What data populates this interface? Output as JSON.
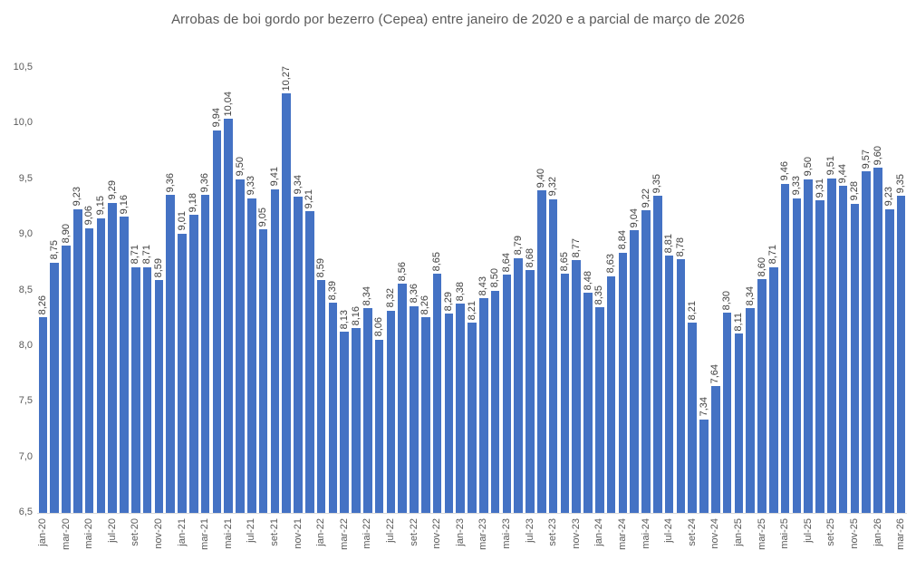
{
  "title": "Arrobas de boi gordo por bezerro (Cepea) entre janeiro de 2020 e a parcial de março de 2026",
  "chart_data": {
    "type": "bar",
    "title": "Arrobas de boi gordo por bezerro (Cepea) entre janeiro de 2020 e a parcial de março de 2026",
    "categories": [
      "jan-20",
      "fev-20",
      "mar-20",
      "abr-20",
      "mai-20",
      "jun-20",
      "jul-20",
      "ago-20",
      "set-20",
      "out-20",
      "nov-20",
      "dez-20",
      "jan-21",
      "fev-21",
      "mar-21",
      "abr-21",
      "mai-21",
      "jun-21",
      "jul-21",
      "ago-21",
      "set-21",
      "out-21",
      "nov-21",
      "dez-21",
      "jan-22",
      "fev-22",
      "mar-22",
      "abr-22",
      "mai-22",
      "jun-22",
      "jul-22",
      "ago-22",
      "set-22",
      "out-22",
      "nov-22",
      "dez-22",
      "jan-23",
      "fev-23",
      "mar-23",
      "abr-23",
      "mai-23",
      "jun-23",
      "jul-23",
      "ago-23",
      "set-23",
      "out-23",
      "nov-23",
      "dez-23",
      "jan-24",
      "fev-24",
      "mar-24",
      "abr-24",
      "mai-24",
      "jun-24",
      "jul-24",
      "ago-24",
      "set-24",
      "out-24",
      "nov-24",
      "dez-24",
      "jan-25",
      "fev-25",
      "mar-25",
      "abr-25",
      "mai-25",
      "jun-25",
      "jul-25",
      "ago-25",
      "set-25",
      "out-25",
      "nov-25",
      "dez-25",
      "jan-26",
      "fev-26",
      "mar-26"
    ],
    "values": [
      8.26,
      8.75,
      8.9,
      9.23,
      9.06,
      9.15,
      9.29,
      9.16,
      8.71,
      8.71,
      8.59,
      9.36,
      9.01,
      9.18,
      9.36,
      9.94,
      10.04,
      9.5,
      9.33,
      9.05,
      9.41,
      10.27,
      9.34,
      9.21,
      8.59,
      8.39,
      8.13,
      8.16,
      8.34,
      8.06,
      8.32,
      8.56,
      8.36,
      8.26,
      8.65,
      8.29,
      8.38,
      8.21,
      8.43,
      8.5,
      8.64,
      8.79,
      8.68,
      9.4,
      9.32,
      8.65,
      8.77,
      8.48,
      8.35,
      8.63,
      8.84,
      9.04,
      9.22,
      9.35,
      8.81,
      8.78,
      8.21,
      7.34,
      7.64,
      8.3,
      8.11,
      8.34,
      8.6,
      8.71,
      9.46,
      9.33,
      9.5,
      9.31,
      9.51,
      9.44,
      9.28,
      9.57,
      9.6,
      9.23,
      9.35
    ],
    "value_labels": [
      "8,26",
      "8,75",
      "8,90",
      "9,23",
      "9,06",
      "9,15",
      "9,29",
      "9,16",
      "8,71",
      "8,71",
      "8,59",
      "9,36",
      "9,01",
      "9,18",
      "9,36",
      "9,94",
      "10,04",
      "9,50",
      "9,33",
      "9,05",
      "9,41",
      "10,27",
      "9,34",
      "9,21",
      "8,59",
      "8,39",
      "8,13",
      "8,16",
      "8,34",
      "8,06",
      "8,32",
      "8,56",
      "8,36",
      "8,26",
      "8,65",
      "8,29",
      "8,38",
      "8,21",
      "8,43",
      "8,50",
      "8,64",
      "8,79",
      "8,68",
      "9,40",
      "9,32",
      "8,65",
      "8,77",
      "8,48",
      "8,35",
      "8,63",
      "8,84",
      "9,04",
      "9,22",
      "9,35",
      "8,81",
      "8,78",
      "8,21",
      "7,34",
      "7,64",
      "8,30",
      "8,11",
      "8,34",
      "8,60",
      "8,71",
      "9,46",
      "9,33",
      "9,50",
      "9,31",
      "9,51",
      "9,44",
      "9,28",
      "9,57",
      "9,60",
      "9,23",
      "9,35"
    ],
    "x_tick_every": 2,
    "x_tick_labels": [
      "jan-20",
      "mar-20",
      "mai-20",
      "jul-20",
      "set-20",
      "nov-20",
      "jan-21",
      "mar-21",
      "mai-21",
      "jul-21",
      "set-21",
      "nov-21",
      "jan-22",
      "mar-22",
      "mai-22",
      "jul-22",
      "set-22",
      "nov-22",
      "jan-23",
      "mar-23",
      "mai-23",
      "jul-23",
      "set-23",
      "nov-23",
      "jan-24",
      "mar-24",
      "mai-24",
      "jul-24",
      "set-24",
      "nov-24",
      "jan-25",
      "mar-25",
      "mai-25",
      "jul-25",
      "set-25",
      "nov-25",
      "jan-26",
      "mar-26"
    ],
    "y_tick_values": [
      6.5,
      7.0,
      7.5,
      8.0,
      8.5,
      9.0,
      9.5,
      10.0,
      10.5
    ],
    "y_tick_labels": [
      "6,5",
      "7,0",
      "7,5",
      "8,0",
      "8,5",
      "9,0",
      "9,5",
      "10,0",
      "10,5"
    ],
    "ylim": [
      6.5,
      10.5
    ],
    "grid": false,
    "legend_position": "none",
    "colors": {
      "bar_fill": "#4472C4",
      "value_label": "#404040",
      "axis_label": "#595959",
      "title": "#595959",
      "baseline": "#D9D9D9",
      "background": "#FFFFFF"
    }
  }
}
